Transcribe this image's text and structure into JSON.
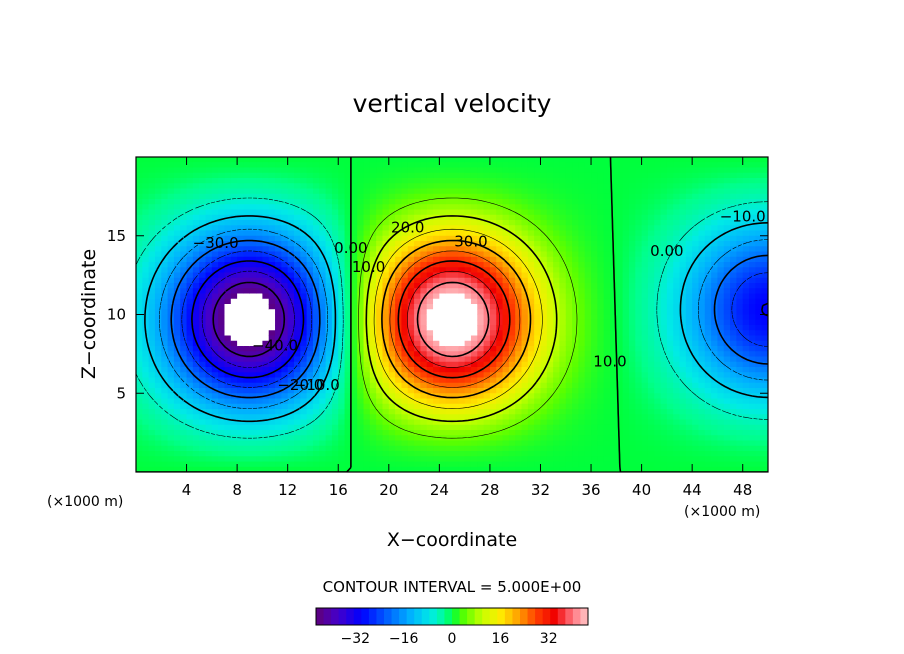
{
  "chart_data": {
    "type": "contour",
    "title": "vertical velocity",
    "xlabel": "X−coordinate",
    "ylabel": "Z−coordinate",
    "x_unit_left": "(×1000 m)",
    "x_unit_right": "(×1000 m)",
    "xlim": [
      0,
      50
    ],
    "ylim": [
      0,
      20
    ],
    "x_ticks": [
      "4",
      "8",
      "12",
      "16",
      "20",
      "24",
      "28",
      "32",
      "36",
      "40",
      "44",
      "48"
    ],
    "x_tick_values": [
      4,
      8,
      12,
      16,
      20,
      24,
      28,
      32,
      36,
      40,
      44,
      48
    ],
    "y_ticks": [
      "5",
      "10",
      "15"
    ],
    "y_tick_values": [
      5,
      10,
      15
    ],
    "contour_interval_text": "CONTOUR INTERVAL = 5.000E+00",
    "contour_interval": 5.0,
    "contour_labels": [
      {
        "text": "−30.0",
        "x": 6.3,
        "y": 14.5
      },
      {
        "text": "−40.0",
        "x": 11.0,
        "y": 8.0
      },
      {
        "text": "−20.0",
        "x": 13.0,
        "y": 5.5
      },
      {
        "text": "−10.0",
        "x": 14.3,
        "y": 5.5
      },
      {
        "text": "0.00",
        "x": 17.0,
        "y": 14.2
      },
      {
        "text": "10.0",
        "x": 18.4,
        "y": 13.0
      },
      {
        "text": "20.0",
        "x": 21.5,
        "y": 15.5
      },
      {
        "text": "30.0",
        "x": 26.5,
        "y": 14.6
      },
      {
        "text": "10.0",
        "x": 37.5,
        "y": 7.0
      },
      {
        "text": "0.00",
        "x": 42.0,
        "y": 14.0
      },
      {
        "text": "−10.0",
        "x": 48.0,
        "y": 16.2
      }
    ],
    "extrema": [
      {
        "type": "min",
        "x": 9.0,
        "y": 9.5,
        "amplitude": -45.0
      },
      {
        "type": "max",
        "x": 25.0,
        "y": 9.5,
        "amplitude": 45.0
      },
      {
        "type": "min",
        "x": 50.0,
        "y": 10.5,
        "amplitude": -28.0
      }
    ],
    "colorbar": {
      "ticks": [
        "−32",
        "−16",
        "0",
        "16",
        "32"
      ],
      "tick_values": [
        -32,
        -16,
        0,
        16,
        32
      ],
      "range": [
        -45,
        45
      ]
    }
  }
}
